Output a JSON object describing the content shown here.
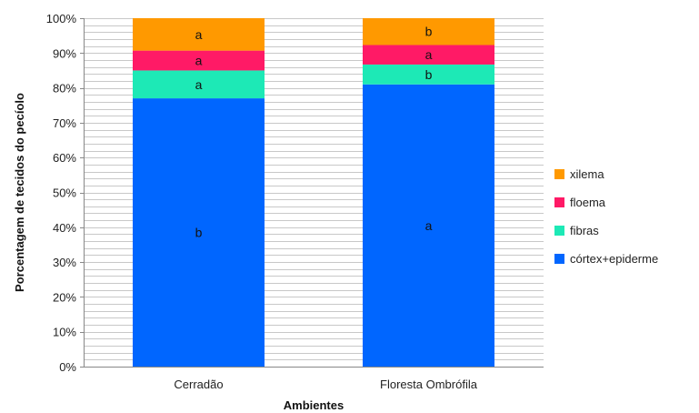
{
  "chart_data": {
    "type": "bar",
    "stacked": true,
    "title": "",
    "xlabel": "Ambientes",
    "ylabel": "Porcentagem de tecidos do pecíolo",
    "ylim": [
      0,
      100
    ],
    "yticks": [
      "0%",
      "10%",
      "20%",
      "30%",
      "40%",
      "50%",
      "60%",
      "70%",
      "80%",
      "90%",
      "100%"
    ],
    "grid": true,
    "legend_position": "right",
    "categories": [
      "Cerradão",
      "Floresta Ombrófila"
    ],
    "series": [
      {
        "name": "córtex+epiderme",
        "color": "#0066ff",
        "values": [
          77,
          81
        ],
        "letters": [
          "b",
          "a"
        ]
      },
      {
        "name": "fibras",
        "color": "#1de9b6",
        "values": [
          8,
          5.7
        ],
        "letters": [
          "a",
          "b"
        ]
      },
      {
        "name": "floema",
        "color": "#ff1a66",
        "values": [
          5.7,
          5.6
        ],
        "letters": [
          "a",
          "a"
        ]
      },
      {
        "name": "xilema",
        "color": "#ff9900",
        "values": [
          9.3,
          7.7
        ],
        "letters": [
          "a",
          "b"
        ]
      }
    ]
  }
}
